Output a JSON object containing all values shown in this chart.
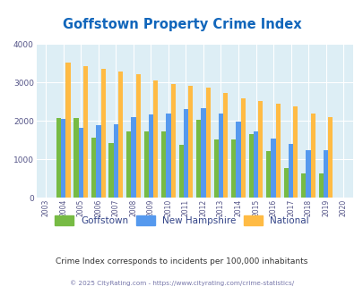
{
  "title": "Goffstown Property Crime Index",
  "years": [
    2003,
    2004,
    2005,
    2006,
    2007,
    2008,
    2009,
    2010,
    2011,
    2012,
    2013,
    2014,
    2015,
    2016,
    2017,
    2018,
    2019,
    2020
  ],
  "goffstown": [
    0,
    2070,
    2070,
    1560,
    1430,
    1730,
    1720,
    1730,
    1380,
    2020,
    1520,
    1520,
    1650,
    1220,
    760,
    630,
    630,
    0
  ],
  "new_hampshire": [
    0,
    2060,
    1830,
    1900,
    1920,
    2090,
    2160,
    2200,
    2310,
    2330,
    2190,
    1980,
    1730,
    1530,
    1400,
    1240,
    1230,
    0
  ],
  "national": [
    0,
    3530,
    3420,
    3360,
    3290,
    3230,
    3050,
    2960,
    2920,
    2880,
    2740,
    2600,
    2510,
    2460,
    2390,
    2200,
    2110,
    0
  ],
  "goffstown_color": "#77bb44",
  "nh_color": "#5599ee",
  "national_color": "#ffbb44",
  "bg_color": "#ddeef5",
  "ylim": [
    0,
    4000
  ],
  "yticks": [
    0,
    1000,
    2000,
    3000,
    4000
  ],
  "title_color": "#1166bb",
  "title_fontsize": 10.5,
  "subtitle": "Crime Index corresponds to incidents per 100,000 inhabitants",
  "subtitle_color": "#333333",
  "footer": "© 2025 CityRating.com - https://www.cityrating.com/crime-statistics/",
  "footer_color": "#7777aa",
  "legend_labels": [
    "Goffstown",
    "New Hampshire",
    "National"
  ],
  "bar_width": 0.27
}
